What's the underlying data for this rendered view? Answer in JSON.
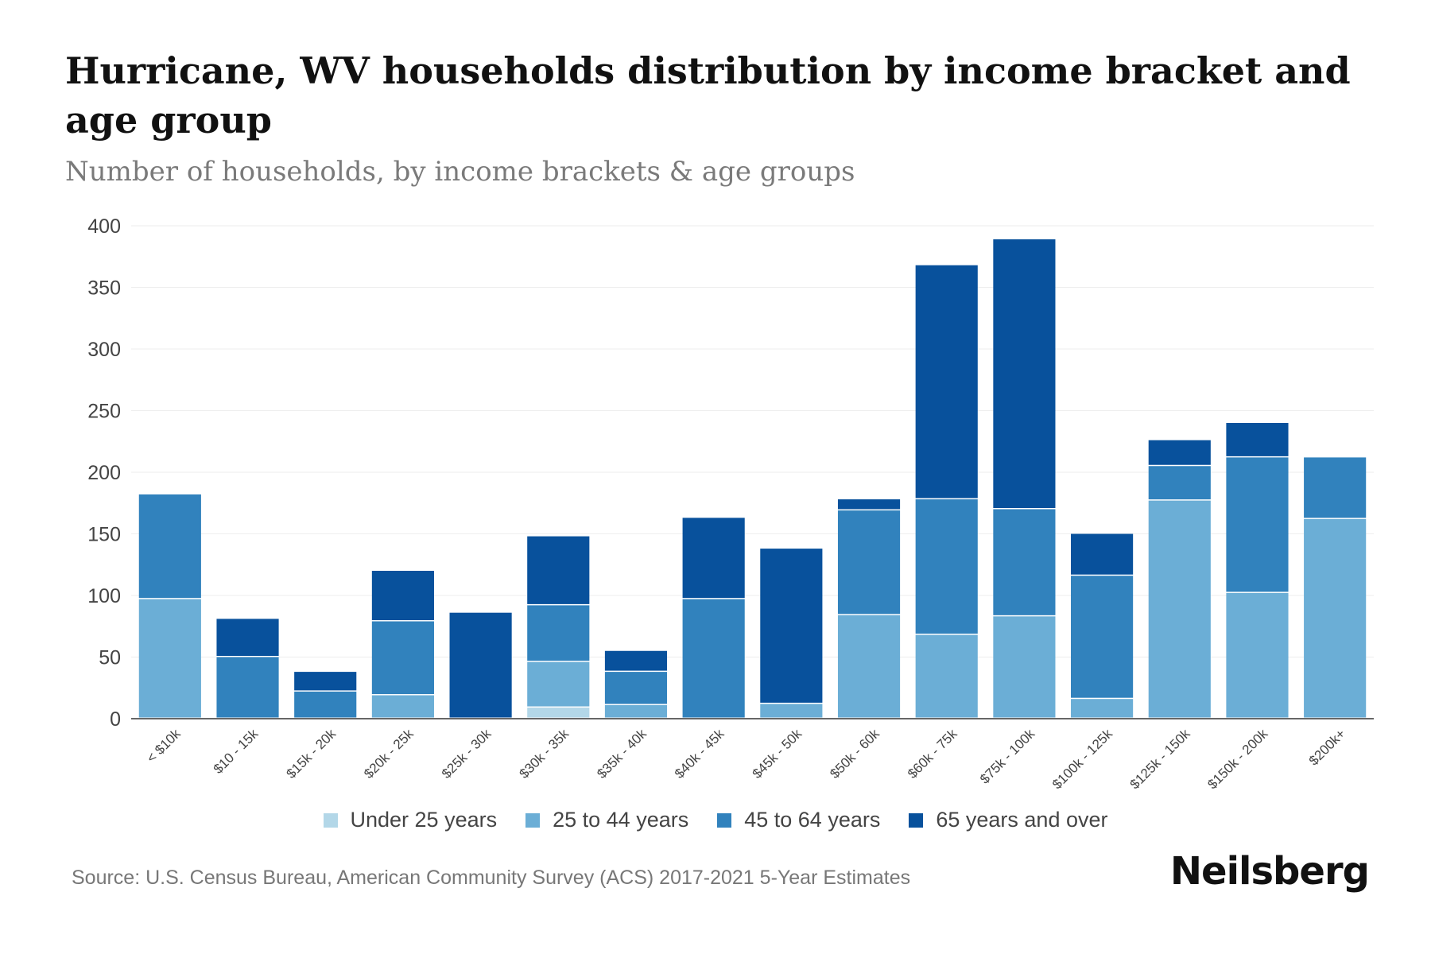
{
  "header": {
    "title": "Hurricane, WV households distribution by income bracket and age group",
    "subtitle": "Number of households, by income brackets & age groups"
  },
  "footer": {
    "source": "Source: U.S. Census Bureau, American Community Survey (ACS) 2017-2021 5-Year Estimates",
    "brand": "Neilsberg"
  },
  "colors": {
    "under_25": "#b3d7e8",
    "age_25_44": "#6baed6",
    "age_45_64": "#3182bd",
    "age_65_plus": "#08519c",
    "grid": "#eeeeee",
    "axis": "#333333"
  },
  "chart_data": {
    "type": "bar",
    "stacked": true,
    "title": "Hurricane, WV households distribution by income bracket and age group",
    "subtitle": "Number of households, by income brackets & age groups",
    "xlabel": "",
    "ylabel": "",
    "ylim": [
      0,
      400
    ],
    "yticks": [
      0,
      50,
      100,
      150,
      200,
      250,
      300,
      350,
      400
    ],
    "grid": true,
    "legend_position": "bottom",
    "categories": [
      "< $10k",
      "$10 - 15k",
      "$15k - 20k",
      "$20k - 25k",
      "$25k - 30k",
      "$30k - 35k",
      "$35k - 40k",
      "$40k - 45k",
      "$45k - 50k",
      "$50k - 60k",
      "$60k - 75k",
      "$75k - 100k",
      "$100k - 125k",
      "$125k - 150k",
      "$150k - 200k",
      "$200k+"
    ],
    "series": [
      {
        "name": "Under 25 years",
        "color_key": "under_25",
        "values": [
          0,
          0,
          0,
          0,
          0,
          9,
          0,
          0,
          0,
          0,
          0,
          0,
          0,
          0,
          0,
          0
        ]
      },
      {
        "name": "25 to 44 years",
        "color_key": "age_25_44",
        "values": [
          97,
          0,
          0,
          19,
          0,
          37,
          11,
          0,
          12,
          84,
          68,
          83,
          16,
          177,
          102,
          162
        ]
      },
      {
        "name": "45 to 64 years",
        "color_key": "age_45_64",
        "values": [
          85,
          50,
          22,
          60,
          0,
          46,
          27,
          97,
          0,
          85,
          110,
          87,
          100,
          28,
          110,
          50
        ]
      },
      {
        "name": "65 years and over",
        "color_key": "age_65_plus",
        "values": [
          0,
          31,
          16,
          41,
          86,
          56,
          17,
          66,
          126,
          9,
          190,
          219,
          34,
          21,
          28,
          0
        ]
      }
    ]
  }
}
